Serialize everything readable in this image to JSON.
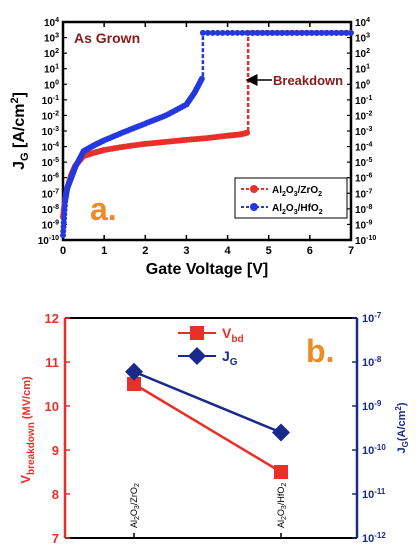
{
  "panel_a": {
    "annotation": "As Grown",
    "panel_label": "a.",
    "breakdown_label": "Breakdown"
  },
  "panel_b": {
    "panel_label": "b."
  },
  "chart_data": [
    {
      "type": "line",
      "panel": "a",
      "xlabel": "Gate Voltage [V]",
      "ylabel": "J_G [A/cm^2]",
      "xlim": [
        0,
        7
      ],
      "ylim": [
        1e-10,
        10000.0
      ],
      "yscale": "log",
      "x_ticks": [
        "0",
        "1",
        "2",
        "3",
        "4",
        "5",
        "6",
        "7"
      ],
      "y_ticks": [
        "10^-10",
        "10^-9",
        "10^-8",
        "10^-7",
        "10^-6",
        "10^-5",
        "10^-4",
        "10^-3",
        "10^-2",
        "10^-1",
        "10^0",
        "10^1",
        "10^2",
        "10^3",
        "10^4"
      ],
      "legend_position": "lower-right",
      "series": [
        {
          "name": "Al2O3/ZrO2",
          "color": "#e8302a",
          "x": [
            0,
            0.05,
            0.1,
            0.2,
            0.3,
            0.5,
            0.75,
            1.0,
            1.5,
            2.0,
            2.5,
            3.0,
            3.5,
            4.0,
            4.3,
            4.5,
            4.5,
            5,
            6,
            7
          ],
          "y": [
            3e-09,
            4e-08,
            2e-07,
            1.5e-06,
            6e-06,
            2.5e-05,
            4e-05,
            6e-05,
            0.0001,
            0.00015,
            0.0002,
            0.00027,
            0.00035,
            0.0005,
            0.0006,
            0.0008,
            2000,
            2000,
            2000,
            2000
          ]
        },
        {
          "name": "Al2O3/HfO2",
          "color": "#2438e0",
          "x": [
            0,
            0.05,
            0.1,
            0.2,
            0.3,
            0.5,
            0.75,
            1.0,
            1.5,
            2.0,
            2.5,
            3.0,
            3.2,
            3.4,
            3.4,
            4,
            5,
            6,
            7
          ],
          "y": [
            2e-10,
            3e-08,
            2e-07,
            1e-06,
            5e-06,
            5e-05,
            0.00012,
            0.00025,
            0.0009,
            0.003,
            0.01,
            0.05,
            0.3,
            3,
            2000,
            2000,
            2000,
            2000,
            2000
          ]
        }
      ]
    },
    {
      "type": "line",
      "panel": "b",
      "categories": [
        "Al2O3/ZrO2",
        "Al2O3/HfO2"
      ],
      "left_ylabel": "V_breakdown (MV/cm)",
      "right_ylabel": "J_G (A/cm^2)",
      "left_ylim": [
        7,
        12
      ],
      "right_ylim": [
        1e-12,
        1e-07
      ],
      "left_yticks": [
        "7",
        "8",
        "9",
        "10",
        "11",
        "12"
      ],
      "right_yticks": [
        "10^-12",
        "10^-11",
        "10^-10",
        "10^-9",
        "10^-8",
        "10^-7"
      ],
      "legend_position": "top-center",
      "series": [
        {
          "name": "V_bd",
          "axis": "left",
          "color": "#e8302a",
          "marker": "square",
          "values": [
            10.5,
            8.5
          ]
        },
        {
          "name": "J_G",
          "axis": "right",
          "color": "#1a2a8c",
          "marker": "diamond",
          "values": [
            6e-09,
            2.5e-10
          ]
        }
      ]
    }
  ]
}
